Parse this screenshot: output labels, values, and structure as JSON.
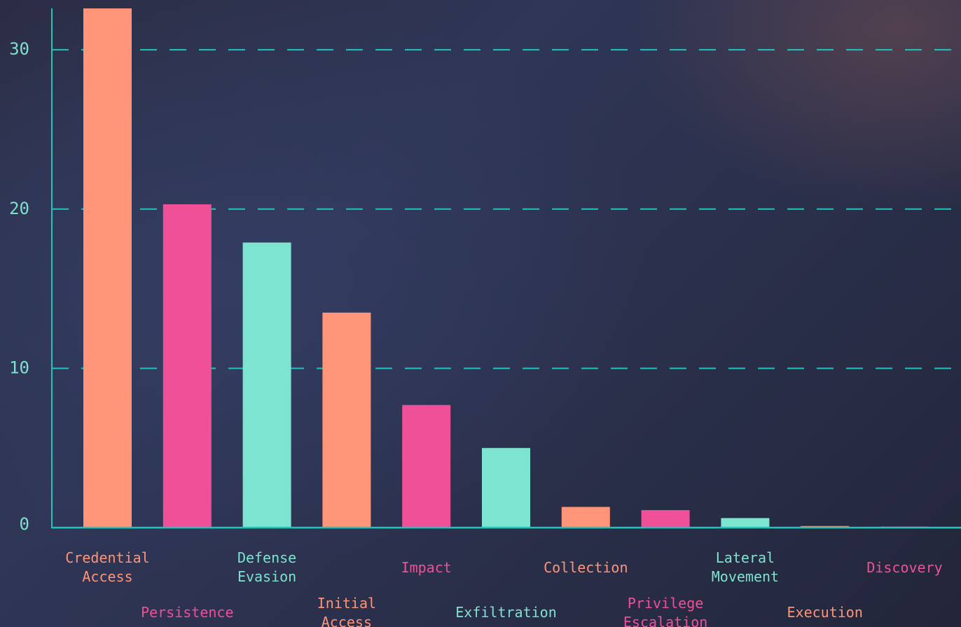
{
  "chart_data": {
    "type": "bar",
    "title": "",
    "xlabel": "",
    "ylabel": "",
    "ylim": [
      0,
      32.6
    ],
    "yticks": [
      0,
      10,
      20,
      30
    ],
    "grid": "horizontal dashed",
    "categories": [
      [
        "Credential",
        "Access"
      ],
      [
        "Persistence"
      ],
      [
        "Defense",
        "Evasion"
      ],
      [
        "Initial",
        "Access"
      ],
      [
        "Impact"
      ],
      [
        "Exfiltration"
      ],
      [
        "Collection"
      ],
      [
        "Privilege",
        "Escalation"
      ],
      [
        "Lateral",
        "Movement"
      ],
      [
        "Execution"
      ],
      [
        "Discovery"
      ]
    ],
    "values": [
      32.6,
      20.3,
      17.9,
      13.5,
      7.7,
      5.0,
      1.3,
      1.1,
      0.6,
      0.1,
      0.05
    ],
    "colors": {
      "bar_cycle": [
        "#ff9478",
        "#ef5098",
        "#7de4d0"
      ],
      "label_cycle": [
        "#ff9478",
        "#ef5098",
        "#7de4d0"
      ],
      "axis": "#1fc4bd",
      "grid": "#1fc4bd",
      "tick_text": "#7fe0cf"
    }
  }
}
